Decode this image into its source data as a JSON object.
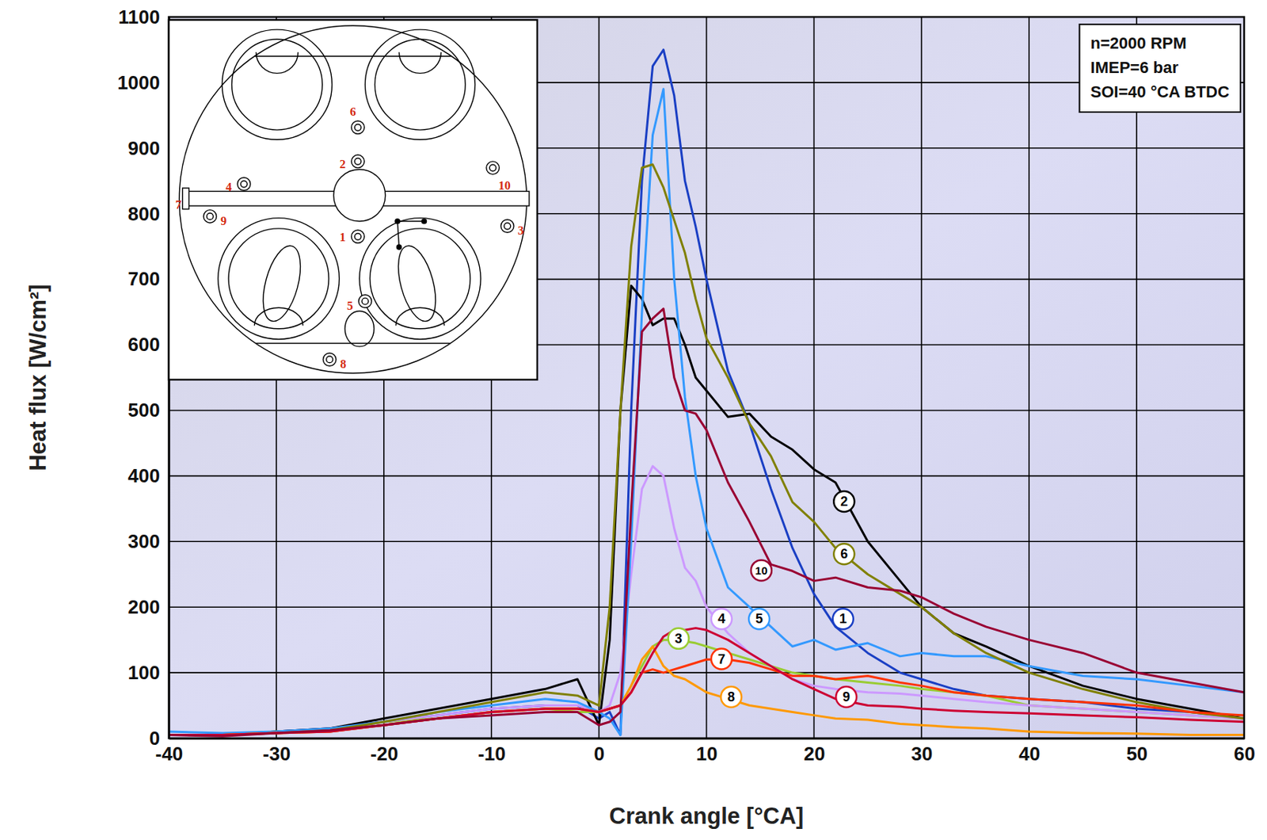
{
  "chart_data": {
    "type": "line",
    "x_label": "Crank angle [°CA]",
    "y_label": "Heat flux [W/cm²]",
    "info_box": [
      "n=2000 RPM",
      "IMEP=6 bar",
      "SOI=40 °CA BTDC"
    ],
    "xlim": [
      -40,
      60
    ],
    "ylim": [
      0,
      1100
    ],
    "xticks": [
      -40,
      -30,
      -20,
      -10,
      0,
      10,
      20,
      30,
      40,
      50,
      60
    ],
    "yticks": [
      0,
      100,
      200,
      300,
      400,
      500,
      600,
      700,
      800,
      900,
      1000,
      1100
    ],
    "grid": true,
    "x": [
      -40,
      -35,
      -30,
      -25,
      -20,
      -15,
      -10,
      -5,
      -2,
      0,
      1,
      2,
      3,
      4,
      5,
      6,
      7,
      8,
      9,
      10,
      12,
      14,
      16,
      18,
      20,
      22,
      25,
      28,
      30,
      33,
      36,
      40,
      45,
      50,
      55,
      60
    ],
    "series": [
      {
        "name": "1",
        "color": "#1a3fc4",
        "values": [
          5,
          5,
          10,
          15,
          25,
          35,
          45,
          50,
          50,
          30,
          40,
          5,
          500,
          850,
          1025,
          1050,
          980,
          850,
          780,
          700,
          560,
          480,
          380,
          290,
          220,
          170,
          130,
          100,
          90,
          75,
          65,
          60,
          55,
          45,
          40,
          30
        ]
      },
      {
        "name": "2",
        "color": "#000000",
        "values": [
          5,
          5,
          10,
          15,
          30,
          45,
          60,
          75,
          90,
          20,
          150,
          500,
          690,
          670,
          630,
          640,
          640,
          600,
          550,
          530,
          490,
          495,
          460,
          440,
          410,
          390,
          300,
          240,
          200,
          160,
          140,
          110,
          80,
          60,
          45,
          30
        ]
      },
      {
        "name": "3",
        "color": "#99cc33",
        "values": [
          5,
          5,
          10,
          12,
          25,
          30,
          40,
          45,
          40,
          40,
          45,
          50,
          80,
          110,
          140,
          150,
          150,
          148,
          145,
          140,
          130,
          120,
          110,
          100,
          95,
          90,
          85,
          80,
          75,
          70,
          65,
          50,
          45,
          40,
          35,
          30
        ]
      },
      {
        "name": "4",
        "color": "#cc99ff",
        "values": [
          5,
          5,
          8,
          12,
          25,
          35,
          45,
          50,
          50,
          40,
          50,
          100,
          250,
          380,
          415,
          400,
          320,
          260,
          240,
          200,
          160,
          130,
          110,
          90,
          80,
          75,
          70,
          68,
          65,
          60,
          55,
          50,
          45,
          40,
          35,
          30
        ]
      },
      {
        "name": "5",
        "color": "#3399ff",
        "values": [
          10,
          8,
          10,
          15,
          25,
          40,
          50,
          60,
          55,
          40,
          30,
          5,
          300,
          650,
          920,
          990,
          700,
          520,
          400,
          320,
          230,
          200,
          170,
          140,
          150,
          135,
          145,
          125,
          130,
          125,
          125,
          110,
          95,
          90,
          80,
          70
        ]
      },
      {
        "name": "6",
        "color": "#808000",
        "values": [
          5,
          5,
          8,
          12,
          25,
          40,
          55,
          70,
          65,
          50,
          200,
          500,
          750,
          870,
          875,
          840,
          790,
          740,
          670,
          610,
          550,
          480,
          430,
          360,
          330,
          290,
          250,
          220,
          200,
          160,
          130,
          100,
          75,
          55,
          40,
          30
        ]
      },
      {
        "name": "7",
        "color": "#ff3300",
        "values": [
          5,
          5,
          8,
          10,
          20,
          30,
          40,
          45,
          45,
          40,
          45,
          50,
          70,
          100,
          105,
          100,
          105,
          110,
          115,
          120,
          120,
          115,
          105,
          95,
          95,
          90,
          95,
          85,
          80,
          70,
          65,
          60,
          55,
          50,
          40,
          35
        ]
      },
      {
        "name": "8",
        "color": "#ff9900",
        "values": [
          5,
          5,
          8,
          10,
          20,
          30,
          40,
          45,
          45,
          40,
          45,
          50,
          80,
          120,
          140,
          110,
          95,
          90,
          80,
          70,
          60,
          50,
          45,
          40,
          35,
          30,
          28,
          22,
          20,
          17,
          15,
          10,
          8,
          7,
          5,
          5
        ]
      },
      {
        "name": "9",
        "color": "#cc0033",
        "values": [
          5,
          5,
          8,
          10,
          20,
          30,
          40,
          45,
          45,
          40,
          45,
          50,
          70,
          100,
          130,
          155,
          165,
          165,
          168,
          165,
          150,
          130,
          110,
          90,
          75,
          60,
          50,
          48,
          45,
          42,
          40,
          38,
          35,
          32,
          28,
          25
        ]
      },
      {
        "name": "10",
        "color": "#990033",
        "values": [
          5,
          3,
          8,
          12,
          20,
          30,
          35,
          40,
          40,
          20,
          25,
          40,
          350,
          620,
          640,
          655,
          550,
          500,
          495,
          470,
          390,
          330,
          265,
          255,
          240,
          245,
          230,
          225,
          215,
          190,
          170,
          150,
          130,
          100,
          85,
          70
        ]
      }
    ],
    "annotations": [
      {
        "text": "2",
        "x": 22.8,
        "y": 361
      },
      {
        "text": "6",
        "x": 22.8,
        "y": 281
      },
      {
        "text": "10",
        "x": 15.1,
        "y": 256
      },
      {
        "text": "4",
        "x": 11.4,
        "y": 182
      },
      {
        "text": "5",
        "x": 14.9,
        "y": 182
      },
      {
        "text": "1",
        "x": 22.7,
        "y": 182
      },
      {
        "text": "3",
        "x": 7.4,
        "y": 152
      },
      {
        "text": "7",
        "x": 11.4,
        "y": 121
      },
      {
        "text": "8",
        "x": 12.3,
        "y": 63
      },
      {
        "text": "9",
        "x": 23.0,
        "y": 63
      }
    ]
  }
}
